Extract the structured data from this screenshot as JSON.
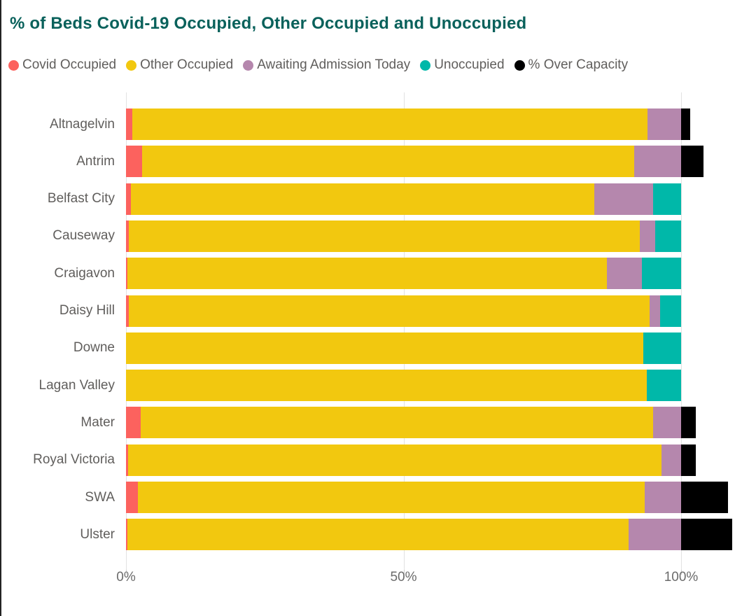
{
  "title": "% of Beds Covid-19 Occupied, Other Occupied and Unoccupied",
  "legend": [
    {
      "label": "Covid Occupied",
      "color": "#FC625E"
    },
    {
      "label": "Other Occupied",
      "color": "#F2C80F"
    },
    {
      "label": "Awaiting Admission Today",
      "color": "#B587AD"
    },
    {
      "label": "Unoccupied",
      "color": "#00B8A9"
    },
    {
      "label": "% Over Capacity",
      "color": "#000000"
    }
  ],
  "chart_data": {
    "type": "bar",
    "orientation": "horizontal",
    "stacked": true,
    "title": "% of Beds Covid-19 Occupied, Other Occupied and Unoccupied",
    "categories": [
      "Altnagelvin",
      "Antrim",
      "Belfast City",
      "Causeway",
      "Craigavon",
      "Daisy Hill",
      "Downe",
      "Lagan Valley",
      "Mater",
      "Royal Victoria",
      "SWA",
      "Ulster"
    ],
    "series": [
      {
        "name": "Covid Occupied",
        "color": "#FC625E",
        "values": [
          1.1,
          2.9,
          0.9,
          0.5,
          0.3,
          0.5,
          0.0,
          0.0,
          2.6,
          0.4,
          2.2,
          0.2
        ]
      },
      {
        "name": "Other Occupied",
        "color": "#F2C80F",
        "values": [
          92.8,
          88.7,
          83.5,
          92.0,
          86.3,
          93.8,
          93.2,
          93.8,
          92.3,
          96.1,
          91.3,
          90.4
        ]
      },
      {
        "name": "Awaiting Admission Today",
        "color": "#B587AD",
        "values": [
          6.1,
          8.4,
          10.6,
          2.9,
          6.3,
          1.9,
          0.0,
          0.0,
          5.1,
          3.5,
          6.5,
          9.4
        ]
      },
      {
        "name": "Unoccupied",
        "color": "#00B8A9",
        "values": [
          0.0,
          0.0,
          5.0,
          4.6,
          7.1,
          3.8,
          6.8,
          6.2,
          0.0,
          0.0,
          0.0,
          0.0
        ]
      },
      {
        "name": "% Over Capacity",
        "color": "#000000",
        "values": [
          1.7,
          4.0,
          0.0,
          0.0,
          0.0,
          0.0,
          0.0,
          0.0,
          2.7,
          2.7,
          8.5,
          9.2
        ]
      }
    ],
    "x_tick_labels": [
      "0%",
      "50%",
      "100%"
    ],
    "x_tick_values": [
      0,
      50,
      100
    ],
    "xlim": [
      0,
      113.5
    ],
    "grid": true,
    "legend_position": "top"
  },
  "colors": {
    "title": "#09615B",
    "text": "#605E5C",
    "gridline": "#E2E2E2",
    "background": "#FFFFFF",
    "frame_edge": "#232323"
  }
}
